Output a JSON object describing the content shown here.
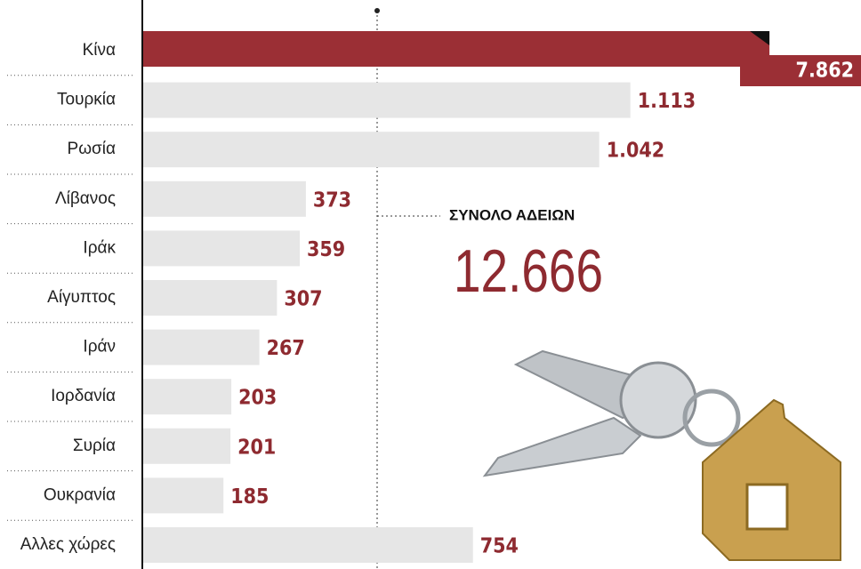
{
  "chart_data": {
    "type": "hbar",
    "categories": [
      "Κίνα",
      "Τουρκία",
      "Ρωσία",
      "Λίβανος",
      "Ιράκ",
      "Αίγυπτος",
      "Ιράν",
      "Ιορδανία",
      "Συρία",
      "Ουκρανία",
      "Αλλες χώρες"
    ],
    "values": [
      7862,
      1113,
      1042,
      373,
      359,
      307,
      267,
      203,
      201,
      185,
      754
    ],
    "value_labels": [
      "7.862",
      "1.113",
      "1.042",
      "373",
      "359",
      "307",
      "267",
      "203",
      "201",
      "185",
      "754"
    ],
    "color": "#e6e6e6",
    "highlight_color": "#9b2f35",
    "label_color": "#8e2a30",
    "total_title": "ΣΥΝΟΛΟ ΑΔΕΙΩΝ",
    "total_text": "12.666"
  }
}
